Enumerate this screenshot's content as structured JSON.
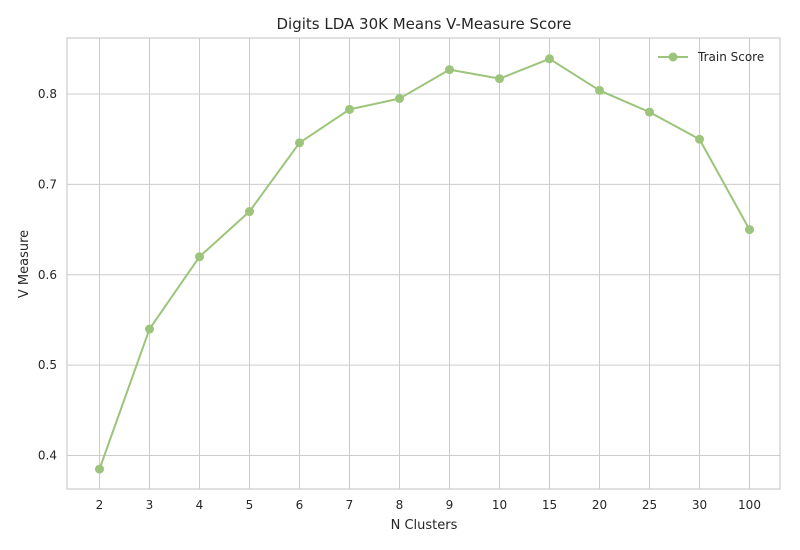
{
  "chart_data": {
    "type": "line",
    "title": "Digits LDA 30K Means V-Measure Score",
    "xlabel": "N Clusters",
    "ylabel": "V Measure",
    "categories": [
      "2",
      "3",
      "4",
      "5",
      "6",
      "7",
      "8",
      "9",
      "10",
      "15",
      "20",
      "25",
      "30",
      "100"
    ],
    "series": [
      {
        "name": "Train Score",
        "color": "#9cc47a",
        "values": [
          0.385,
          0.54,
          0.62,
          0.67,
          0.746,
          0.783,
          0.795,
          0.827,
          0.817,
          0.839,
          0.804,
          0.78,
          0.75,
          0.65
        ]
      }
    ],
    "yticks": [
      0.4,
      0.5,
      0.6,
      0.7,
      0.8
    ],
    "ylim": [
      0.363,
      0.862
    ],
    "grid": true,
    "legend_position": "top-right"
  }
}
